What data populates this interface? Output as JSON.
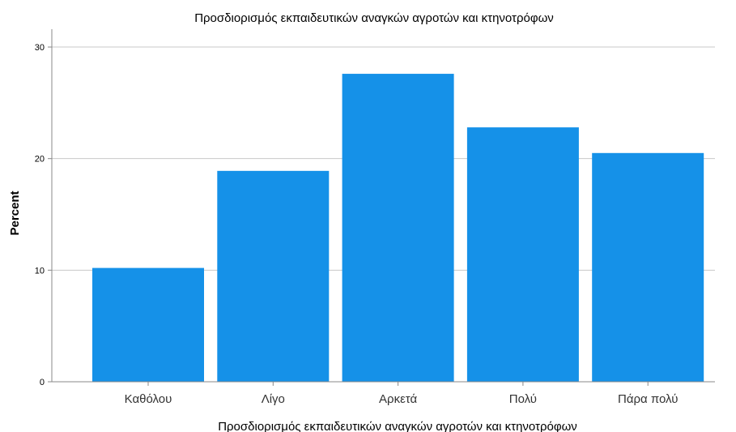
{
  "chart_data": {
    "type": "bar",
    "title": "Προσδιορισμός εκπαιδευτικών αναγκών αγροτών και κτηνοτρόφων",
    "xlabel": "Προσδιορισμός εκπαιδευτικών αναγκών αγροτών και κτηνοτρόφων",
    "ylabel": "Percent",
    "categories": [
      "Καθόλου",
      "Λίγο",
      "Αρκετά",
      "Πολύ",
      "Πάρα πολύ"
    ],
    "values": [
      10.2,
      18.9,
      27.6,
      22.8,
      20.5
    ],
    "ylim": [
      0,
      31.6
    ],
    "yticks": [
      0,
      10,
      20,
      30
    ],
    "grid": true,
    "bar_color": "#1591e8",
    "grid_color": "#c8c8c8",
    "axis_color": "#888888"
  }
}
